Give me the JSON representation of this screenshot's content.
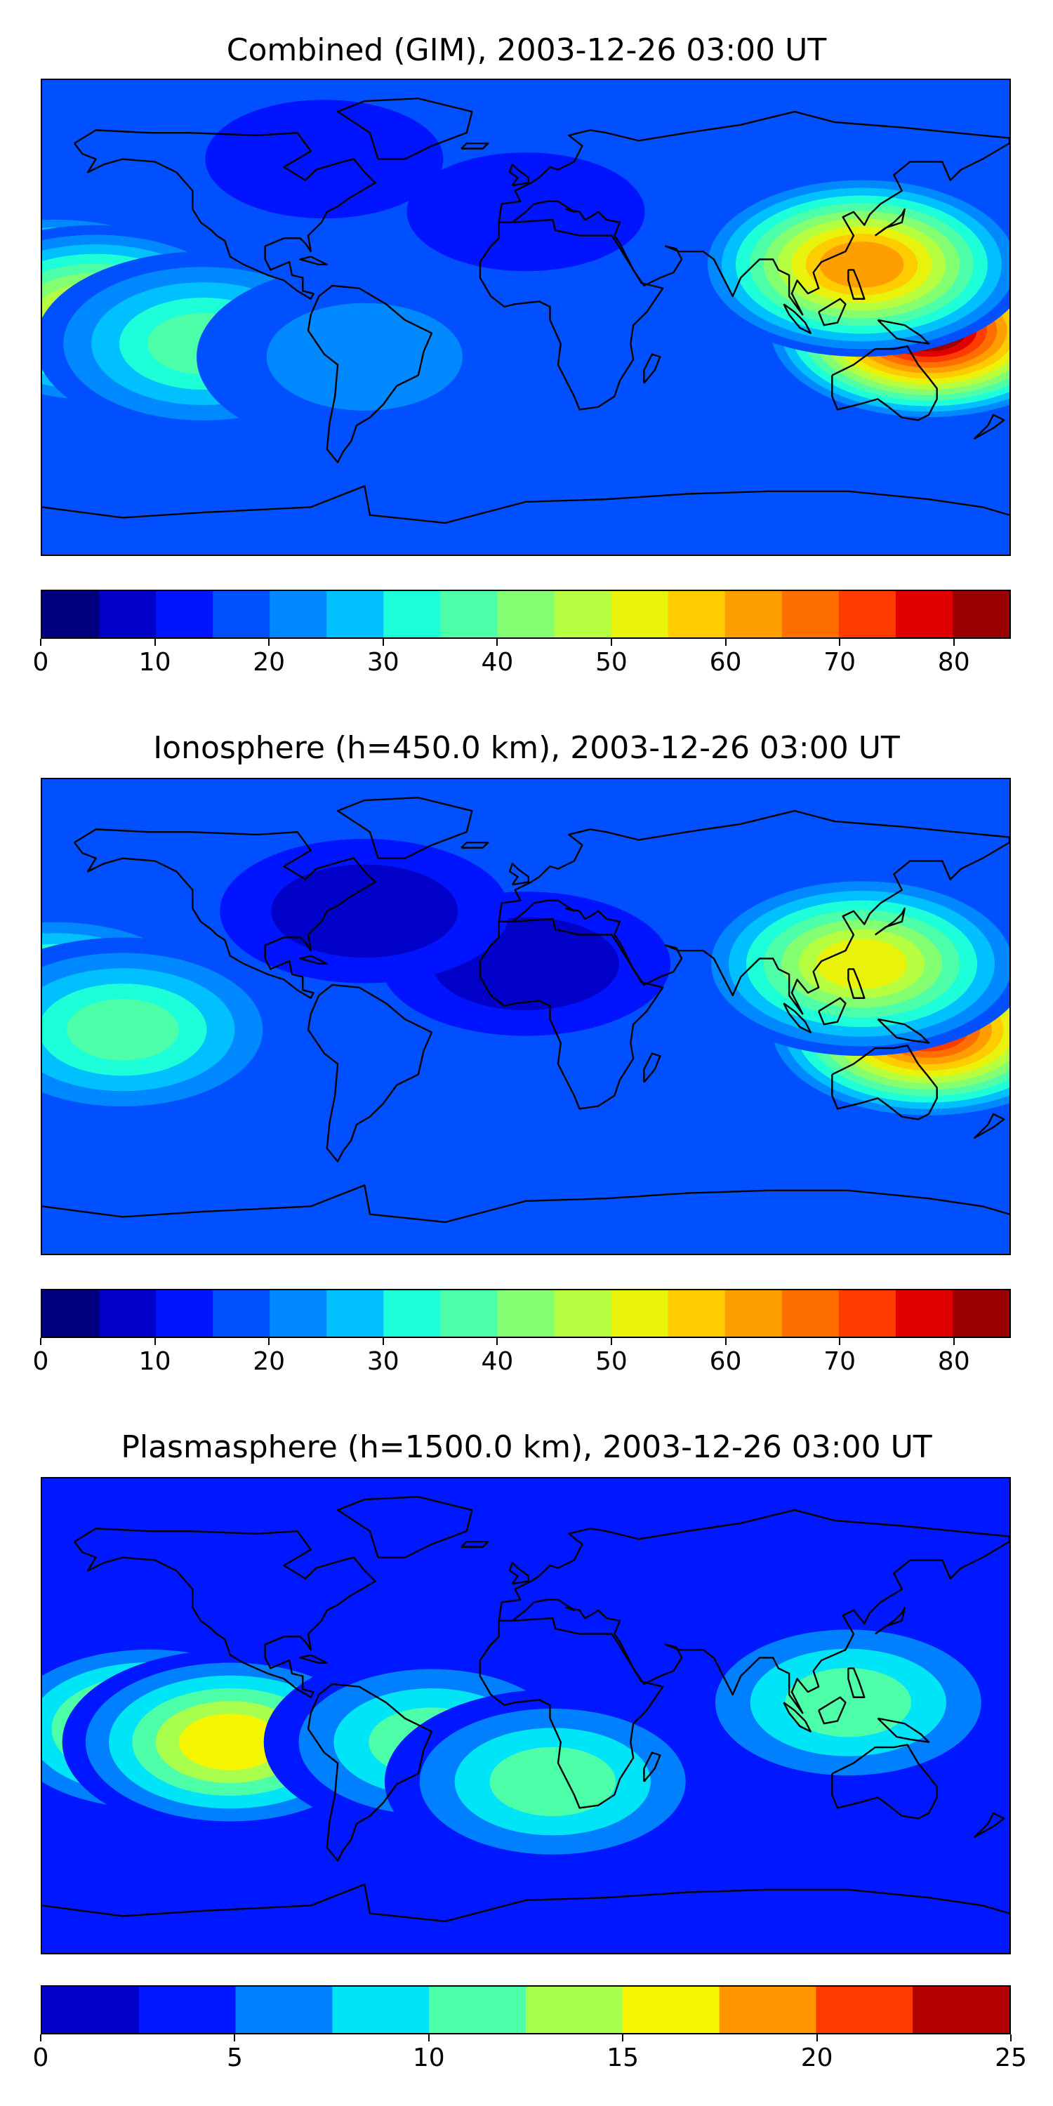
{
  "chart_data": [
    {
      "type": "heatmap",
      "title": "Combined (GIM), 2003-12-26 03:00 UT",
      "colorbar": {
        "min": 0,
        "max": 85,
        "step": 5,
        "ticks": [
          0,
          10,
          20,
          30,
          40,
          50,
          60,
          70,
          80
        ],
        "colors": [
          "#00007f",
          "#0000c8",
          "#0014ff",
          "#0050ff",
          "#0088ff",
          "#00c0ff",
          "#1cffd9",
          "#4dffa8",
          "#84ff72",
          "#b6ff40",
          "#e8f20a",
          "#ffcc00",
          "#ff9e00",
          "#ff6e00",
          "#ff3c00",
          "#e00000",
          "#9b0000"
        ]
      },
      "blobs": [
        {
          "lon": 145,
          "lat": 0,
          "value": 78
        },
        {
          "lon": 150,
          "lat": -5,
          "value": 82
        },
        {
          "lon": 125,
          "lat": 20,
          "value": 62
        },
        {
          "lon": -175,
          "lat": 5,
          "value": 62
        },
        {
          "lon": -160,
          "lat": 0,
          "value": 52
        },
        {
          "lon": -120,
          "lat": -10,
          "value": 35
        },
        {
          "lon": -60,
          "lat": -15,
          "value": 20
        },
        {
          "lon": 0,
          "lat": 40,
          "value": 8
        },
        {
          "lon": -75,
          "lat": 60,
          "value": 10
        }
      ]
    },
    {
      "type": "heatmap",
      "title": "Ionosphere  (h=450.0 km), 2003-12-26 03:00 UT",
      "colorbar": {
        "min": 0,
        "max": 85,
        "step": 5,
        "ticks": [
          0,
          10,
          20,
          30,
          40,
          50,
          60,
          70,
          80
        ],
        "colors": [
          "#00007f",
          "#0000c8",
          "#0014ff",
          "#0050ff",
          "#0088ff",
          "#00c0ff",
          "#1cffd9",
          "#4dffa8",
          "#84ff72",
          "#b6ff40",
          "#e8f20a",
          "#ffcc00",
          "#ff9e00",
          "#ff6e00",
          "#ff3c00",
          "#e00000",
          "#9b0000"
        ]
      },
      "blobs": [
        {
          "lon": 150,
          "lat": -5,
          "value": 70
        },
        {
          "lon": 125,
          "lat": 20,
          "value": 52
        },
        {
          "lon": -175,
          "lat": 5,
          "value": 48
        },
        {
          "lon": -150,
          "lat": -5,
          "value": 38
        },
        {
          "lon": 0,
          "lat": 20,
          "value": 2
        },
        {
          "lon": -60,
          "lat": 40,
          "value": 2
        }
      ]
    },
    {
      "type": "heatmap",
      "title": "Plasmasphere (h=1500.0 km), 2003-12-26 03:00 UT",
      "colorbar": {
        "min": 0,
        "max": 25,
        "step": 2.5,
        "ticks": [
          0,
          5,
          10,
          15,
          20,
          25
        ],
        "colors": [
          "#0000c8",
          "#0018ff",
          "#0080ff",
          "#00e4f8",
          "#4dffa8",
          "#a8ff4e",
          "#f6f500",
          "#ff9600",
          "#ff3c00",
          "#b40000"
        ]
      },
      "blobs": [
        {
          "lon": -140,
          "lat": -5,
          "value": 16
        },
        {
          "lon": -110,
          "lat": -10,
          "value": 15
        },
        {
          "lon": -35,
          "lat": -10,
          "value": 12
        },
        {
          "lon": 120,
          "lat": 5,
          "value": 11
        },
        {
          "lon": 10,
          "lat": -25,
          "value": 10
        },
        {
          "lon": 0,
          "lat": 70,
          "value": 1
        },
        {
          "lon": 60,
          "lat": -40,
          "value": 2
        },
        {
          "lon": 150,
          "lat": -70,
          "value": 1
        }
      ]
    }
  ]
}
